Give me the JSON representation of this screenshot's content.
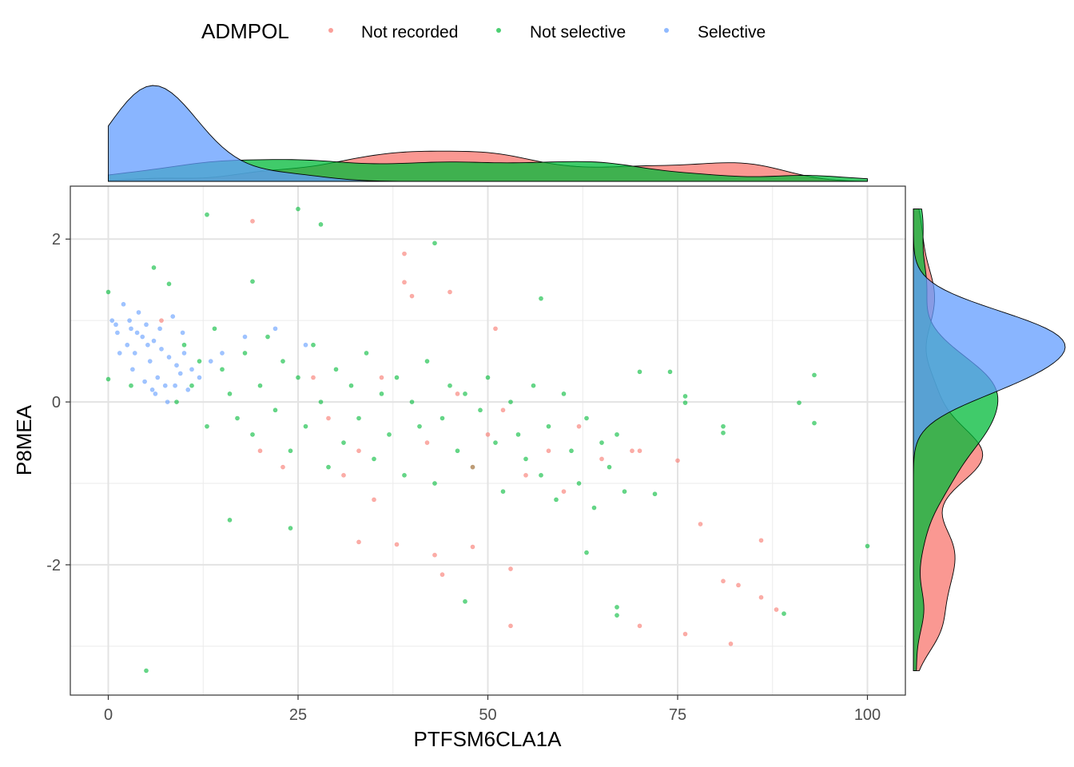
{
  "chart_data": {
    "type": "scatter",
    "xlabel": "PTFSM6CLA1A",
    "ylabel": "P8MEA",
    "xlim": [
      -5,
      105
    ],
    "ylim": [
      -3.6,
      2.65
    ],
    "x_ticks": [
      0,
      25,
      50,
      75,
      100
    ],
    "x_tick_labels": [
      "0",
      "25",
      "50",
      "75",
      "100"
    ],
    "y_ticks": [
      -2,
      0,
      2
    ],
    "y_tick_labels": [
      "-2",
      "0",
      "2"
    ],
    "grid": true,
    "legend": {
      "title": "ADMPOL",
      "position": "top",
      "entries": [
        "Not recorded",
        "Not selective",
        "Selective"
      ]
    },
    "colors": {
      "Not recorded": "#F8766D",
      "Not selective": "#00BA38",
      "Selective": "#619CFF"
    },
    "marginals": {
      "type": "density",
      "top_axis": "PTFSM6CLA1A",
      "right_axis": "P8MEA"
    },
    "series": [
      {
        "name": "Selective",
        "points": [
          [
            0.5,
            1.0
          ],
          [
            1.2,
            0.85
          ],
          [
            2.0,
            1.2
          ],
          [
            2.5,
            0.7
          ],
          [
            3.0,
            0.9
          ],
          [
            3.5,
            0.6
          ],
          [
            4.0,
            1.1
          ],
          [
            4.5,
            0.8
          ],
          [
            5.0,
            0.95
          ],
          [
            5.5,
            0.5
          ],
          [
            6.0,
            0.75
          ],
          [
            6.5,
            0.3
          ],
          [
            7.0,
            0.65
          ],
          [
            7.5,
            0.2
          ],
          [
            8.0,
            0.55
          ],
          [
            8.5,
            1.05
          ],
          [
            9.0,
            0.45
          ],
          [
            9.5,
            0.35
          ],
          [
            10.0,
            0.6
          ],
          [
            10.5,
            0.15
          ],
          [
            1.5,
            0.6
          ],
          [
            3.2,
            0.4
          ],
          [
            4.8,
            0.25
          ],
          [
            6.2,
            0.1
          ],
          [
            7.8,
            0.0
          ],
          [
            2.8,
            1.0
          ],
          [
            5.2,
            0.7
          ],
          [
            6.8,
            0.9
          ],
          [
            8.8,
            0.2
          ],
          [
            11.0,
            0.4
          ],
          [
            12.0,
            0.3
          ],
          [
            13.5,
            0.5
          ],
          [
            15.0,
            0.6
          ],
          [
            18.0,
            0.8
          ],
          [
            22.0,
            0.9
          ],
          [
            26.0,
            0.7
          ],
          [
            1.0,
            0.95
          ],
          [
            3.8,
            0.85
          ],
          [
            5.8,
            0.15
          ],
          [
            9.8,
            0.85
          ]
        ]
      },
      {
        "name": "Not selective",
        "points": [
          [
            0,
            1.35
          ],
          [
            0,
            0.28
          ],
          [
            3,
            0.2
          ],
          [
            6,
            1.65
          ],
          [
            8,
            1.45
          ],
          [
            13,
            2.3
          ],
          [
            19,
            1.48
          ],
          [
            25,
            2.37
          ],
          [
            28,
            2.18
          ],
          [
            43,
            1.95
          ],
          [
            57,
            1.27
          ],
          [
            5,
            -3.3
          ],
          [
            16,
            -1.45
          ],
          [
            24,
            -1.55
          ],
          [
            47,
            -2.45
          ],
          [
            63,
            -1.85
          ],
          [
            67,
            -2.52
          ],
          [
            67,
            -2.62
          ],
          [
            89,
            -2.6
          ],
          [
            93,
            0.33
          ],
          [
            93,
            -0.26
          ],
          [
            91,
            -0.01
          ],
          [
            81,
            -0.3
          ],
          [
            81,
            -0.38
          ],
          [
            76,
            0.07
          ],
          [
            76,
            -0.01
          ],
          [
            74,
            0.37
          ],
          [
            70,
            0.37
          ],
          [
            72,
            -1.13
          ],
          [
            100,
            -1.77
          ],
          [
            15,
            0.4
          ],
          [
            16,
            0.1
          ],
          [
            17,
            -0.2
          ],
          [
            18,
            0.6
          ],
          [
            19,
            -0.4
          ],
          [
            20,
            0.2
          ],
          [
            21,
            0.8
          ],
          [
            22,
            -0.1
          ],
          [
            23,
            0.5
          ],
          [
            24,
            -0.6
          ],
          [
            25,
            0.3
          ],
          [
            26,
            -0.3
          ],
          [
            27,
            0.7
          ],
          [
            28,
            0.0
          ],
          [
            29,
            -0.8
          ],
          [
            30,
            0.4
          ],
          [
            31,
            -0.5
          ],
          [
            32,
            0.2
          ],
          [
            33,
            -0.2
          ],
          [
            34,
            0.6
          ],
          [
            35,
            -0.7
          ],
          [
            36,
            0.1
          ],
          [
            37,
            -0.4
          ],
          [
            38,
            0.3
          ],
          [
            39,
            -0.9
          ],
          [
            40,
            0.0
          ],
          [
            41,
            -0.3
          ],
          [
            42,
            0.5
          ],
          [
            43,
            -1.0
          ],
          [
            44,
            -0.2
          ],
          [
            45,
            0.2
          ],
          [
            46,
            -0.6
          ],
          [
            47,
            0.1
          ],
          [
            48,
            -0.8
          ],
          [
            49,
            -0.1
          ],
          [
            50,
            0.3
          ],
          [
            51,
            -0.5
          ],
          [
            52,
            -1.1
          ],
          [
            53,
            0.0
          ],
          [
            54,
            -0.4
          ],
          [
            55,
            -0.7
          ],
          [
            56,
            0.2
          ],
          [
            57,
            -0.9
          ],
          [
            58,
            -0.3
          ],
          [
            59,
            -1.2
          ],
          [
            60,
            0.1
          ],
          [
            61,
            -0.6
          ],
          [
            62,
            -1.0
          ],
          [
            63,
            -0.2
          ],
          [
            64,
            -1.3
          ],
          [
            65,
            -0.5
          ],
          [
            66,
            -0.8
          ],
          [
            67,
            -0.4
          ],
          [
            68,
            -1.1
          ],
          [
            14,
            0.9
          ],
          [
            12,
            0.5
          ],
          [
            11,
            0.2
          ],
          [
            10,
            0.7
          ],
          [
            9,
            0.0
          ],
          [
            13,
            -0.3
          ]
        ]
      },
      {
        "name": "Not recorded",
        "points": [
          [
            19,
            2.22
          ],
          [
            39,
            1.82
          ],
          [
            39,
            1.47
          ],
          [
            40,
            1.3
          ],
          [
            45,
            1.35
          ],
          [
            51,
            0.9
          ],
          [
            7,
            1.0
          ],
          [
            29,
            -0.2
          ],
          [
            33,
            -0.6
          ],
          [
            36,
            0.3
          ],
          [
            42,
            -0.5
          ],
          [
            46,
            0.1
          ],
          [
            48,
            -0.8
          ],
          [
            50,
            -0.4
          ],
          [
            52,
            -0.1
          ],
          [
            55,
            -0.9
          ],
          [
            58,
            -0.6
          ],
          [
            60,
            -1.1
          ],
          [
            62,
            -0.3
          ],
          [
            65,
            -0.7
          ],
          [
            69,
            -0.6
          ],
          [
            70,
            -0.6
          ],
          [
            75,
            -0.72
          ],
          [
            78,
            -1.5
          ],
          [
            86,
            -1.7
          ],
          [
            81,
            -2.2
          ],
          [
            83,
            -2.25
          ],
          [
            86,
            -2.4
          ],
          [
            88,
            -2.55
          ],
          [
            70,
            -2.75
          ],
          [
            76,
            -2.85
          ],
          [
            82,
            -2.97
          ],
          [
            53,
            -2.75
          ],
          [
            44,
            -2.12
          ],
          [
            53,
            -2.05
          ],
          [
            43,
            -1.88
          ],
          [
            33,
            -1.72
          ],
          [
            38,
            -1.75
          ],
          [
            48,
            -1.78
          ],
          [
            20,
            -0.6
          ],
          [
            23,
            -0.8
          ],
          [
            27,
            0.3
          ],
          [
            31,
            -0.9
          ],
          [
            35,
            -1.2
          ]
        ]
      }
    ]
  }
}
